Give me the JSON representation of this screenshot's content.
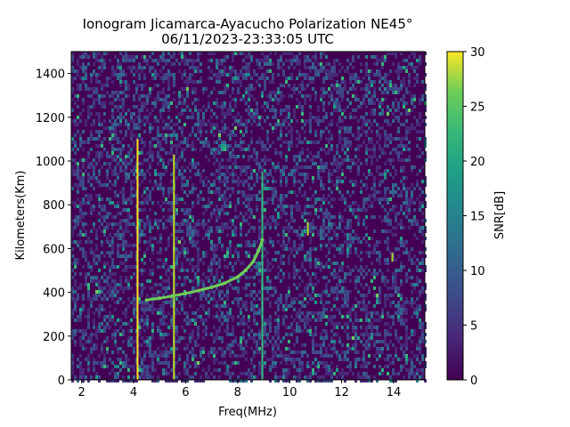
{
  "chart_data": {
    "type": "heatmap",
    "title_line1": "Ionogram Jicamarca-Ayacucho Polarization NE45°",
    "title_line2": "06/11/2023-23:33:05 UTC",
    "xlabel": "Freq(MHz)",
    "ylabel": "Kilometers(Km)",
    "colorbar_label": "SNR[dB]",
    "xlim": [
      1.6,
      15.2
    ],
    "ylim": [
      0,
      1500
    ],
    "clim": [
      0,
      30
    ],
    "x_ticks": [
      2,
      4,
      6,
      8,
      10,
      12,
      14
    ],
    "y_ticks": [
      0,
      200,
      400,
      600,
      800,
      1000,
      1200,
      1400
    ],
    "colorbar_ticks": [
      0,
      5,
      10,
      15,
      20,
      25,
      30
    ],
    "colormap": "viridis",
    "trace": {
      "freq_mhz": [
        4.5,
        5.0,
        5.5,
        6.0,
        6.5,
        7.0,
        7.5,
        8.0,
        8.3,
        8.6,
        8.8,
        8.95
      ],
      "range_km": [
        365,
        373,
        383,
        395,
        408,
        423,
        442,
        470,
        500,
        540,
        590,
        640
      ]
    },
    "interference_lines": [
      {
        "freq_mhz": 4.15,
        "range_top_km": 1100,
        "snr_db": 30
      },
      {
        "freq_mhz": 5.55,
        "range_top_km": 1030,
        "snr_db": 28
      },
      {
        "freq_mhz": 8.95,
        "range_top_km": 950,
        "snr_db": 20
      },
      {
        "freq_mhz": 10.7,
        "range_bottom_km": 660,
        "range_top_km": 720,
        "snr_db": 28
      },
      {
        "freq_mhz": 13.95,
        "range_bottom_km": 540,
        "range_top_km": 580,
        "snr_db": 28
      }
    ]
  }
}
